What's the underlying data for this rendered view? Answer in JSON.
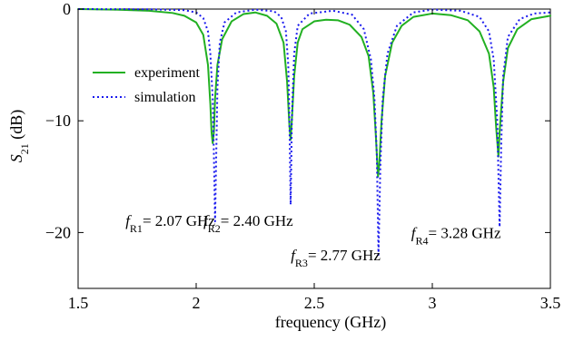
{
  "chart_data": {
    "type": "line",
    "xlabel": "frequency (GHz)",
    "ylabel": {
      "base": "S",
      "sub": "21",
      "suffix": " (dB)"
    },
    "xlim": [
      1.5,
      3.5
    ],
    "ylim": [
      -25,
      0
    ],
    "xticks": [
      1.5,
      2,
      2.5,
      3,
      3.5
    ],
    "yticks": [
      0,
      -10,
      -20
    ],
    "grid": false,
    "legend_position": "upper-left",
    "legend": [
      {
        "label": "experiment",
        "style": "solid",
        "color": "#22b022"
      },
      {
        "label": "simulation",
        "style": "dotted",
        "color": "#1a1aee"
      }
    ],
    "series": [
      {
        "name": "experiment",
        "color": "#22b022",
        "style": "solid",
        "points": [
          [
            1.5,
            0.0
          ],
          [
            1.65,
            -0.05
          ],
          [
            1.8,
            -0.15
          ],
          [
            1.9,
            -0.35
          ],
          [
            1.95,
            -0.6
          ],
          [
            2.0,
            -1.2
          ],
          [
            2.03,
            -2.3
          ],
          [
            2.05,
            -5.0
          ],
          [
            2.06,
            -8.5
          ],
          [
            2.065,
            -11.0
          ],
          [
            2.07,
            -12.0
          ],
          [
            2.075,
            -11.0
          ],
          [
            2.08,
            -8.0
          ],
          [
            2.09,
            -5.0
          ],
          [
            2.11,
            -2.7
          ],
          [
            2.15,
            -1.1
          ],
          [
            2.2,
            -0.45
          ],
          [
            2.25,
            -0.3
          ],
          [
            2.3,
            -0.6
          ],
          [
            2.34,
            -1.3
          ],
          [
            2.37,
            -3.0
          ],
          [
            2.385,
            -6.5
          ],
          [
            2.395,
            -10.5
          ],
          [
            2.4,
            -11.7
          ],
          [
            2.405,
            -10.0
          ],
          [
            2.415,
            -6.0
          ],
          [
            2.43,
            -3.0
          ],
          [
            2.45,
            -1.8
          ],
          [
            2.5,
            -1.1
          ],
          [
            2.55,
            -0.95
          ],
          [
            2.6,
            -1.0
          ],
          [
            2.65,
            -1.4
          ],
          [
            2.7,
            -2.5
          ],
          [
            2.73,
            -4.2
          ],
          [
            2.75,
            -7.5
          ],
          [
            2.76,
            -11.0
          ],
          [
            2.77,
            -15.0
          ],
          [
            2.775,
            -14.0
          ],
          [
            2.785,
            -10.0
          ],
          [
            2.8,
            -6.0
          ],
          [
            2.83,
            -3.0
          ],
          [
            2.87,
            -1.5
          ],
          [
            2.92,
            -0.7
          ],
          [
            3.0,
            -0.4
          ],
          [
            3.08,
            -0.55
          ],
          [
            3.15,
            -1.0
          ],
          [
            3.2,
            -2.0
          ],
          [
            3.24,
            -4.0
          ],
          [
            3.26,
            -7.0
          ],
          [
            3.27,
            -10.5
          ],
          [
            3.28,
            -13.2
          ],
          [
            3.285,
            -11.0
          ],
          [
            3.3,
            -6.5
          ],
          [
            3.32,
            -3.5
          ],
          [
            3.36,
            -1.8
          ],
          [
            3.42,
            -0.9
          ],
          [
            3.5,
            -0.6
          ]
        ]
      },
      {
        "name": "simulation",
        "color": "#1a1aee",
        "style": "dotted",
        "points": [
          [
            1.5,
            0.0
          ],
          [
            1.8,
            -0.02
          ],
          [
            1.95,
            -0.1
          ],
          [
            2.0,
            -0.3
          ],
          [
            2.03,
            -0.8
          ],
          [
            2.05,
            -2.0
          ],
          [
            2.06,
            -4.0
          ],
          [
            2.07,
            -8.0
          ],
          [
            2.075,
            -13.0
          ],
          [
            2.08,
            -19.0
          ],
          [
            2.085,
            -13.0
          ],
          [
            2.09,
            -7.0
          ],
          [
            2.1,
            -3.0
          ],
          [
            2.12,
            -1.2
          ],
          [
            2.17,
            -0.3
          ],
          [
            2.25,
            -0.05
          ],
          [
            2.33,
            -0.2
          ],
          [
            2.36,
            -0.7
          ],
          [
            2.38,
            -2.0
          ],
          [
            2.39,
            -5.0
          ],
          [
            2.395,
            -10.0
          ],
          [
            2.4,
            -17.5
          ],
          [
            2.405,
            -10.0
          ],
          [
            2.415,
            -4.0
          ],
          [
            2.43,
            -1.5
          ],
          [
            2.48,
            -0.4
          ],
          [
            2.58,
            -0.15
          ],
          [
            2.66,
            -0.5
          ],
          [
            2.71,
            -1.8
          ],
          [
            2.74,
            -4.5
          ],
          [
            2.755,
            -8.0
          ],
          [
            2.765,
            -13.0
          ],
          [
            2.772,
            -22.0
          ],
          [
            2.78,
            -14.0
          ],
          [
            2.79,
            -8.0
          ],
          [
            2.81,
            -4.0
          ],
          [
            2.85,
            -1.5
          ],
          [
            2.92,
            -0.3
          ],
          [
            3.0,
            -0.05
          ],
          [
            3.12,
            -0.15
          ],
          [
            3.2,
            -0.7
          ],
          [
            3.24,
            -2.0
          ],
          [
            3.26,
            -4.5
          ],
          [
            3.275,
            -10.0
          ],
          [
            3.285,
            -19.5
          ],
          [
            3.292,
            -12.0
          ],
          [
            3.3,
            -6.0
          ],
          [
            3.32,
            -2.5
          ],
          [
            3.37,
            -0.9
          ],
          [
            3.43,
            -0.4
          ],
          [
            3.5,
            -0.3
          ]
        ]
      }
    ],
    "annotations": [
      {
        "base": "f",
        "sub": "R1",
        "text": "= 2.07 GHz",
        "x": 2.07,
        "y": -19.4
      },
      {
        "base": "f",
        "sub": "R2",
        "text": "= 2.40 GHz",
        "x": 2.4,
        "y": -19.4
      },
      {
        "base": "f",
        "sub": "R3",
        "text": "= 2.77 GHz",
        "x": 2.77,
        "y": -22.5
      },
      {
        "base": "f",
        "sub": "R4",
        "text": "= 3.28 GHz",
        "x": 3.28,
        "y": -20.5
      }
    ]
  }
}
